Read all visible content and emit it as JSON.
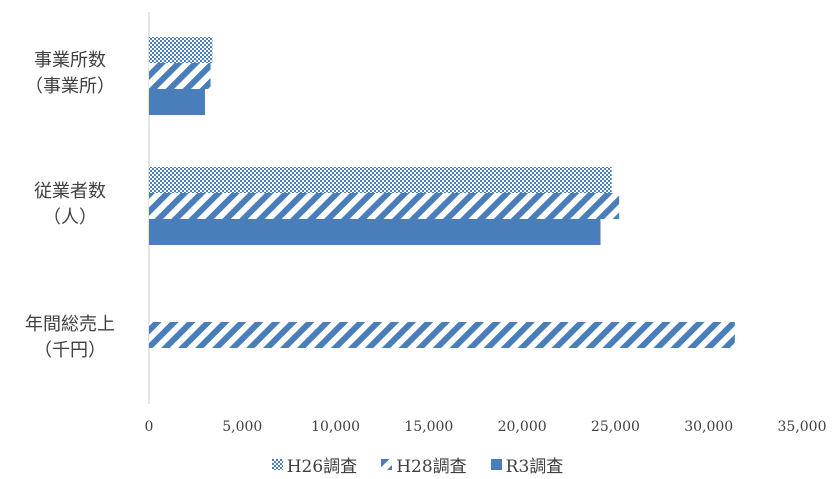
{
  "chart_data": {
    "type": "bar",
    "orientation": "horizontal",
    "categories": [
      {
        "line1": "事業所数",
        "line2": "（事業所）"
      },
      {
        "line1": "従業者数",
        "line2": "（人）"
      },
      {
        "line1": "年間総売上",
        "line2": "（千円）"
      }
    ],
    "series": [
      {
        "name": "H26調査",
        "pattern": "checker",
        "color": "#4a7ebb",
        "values": [
          3400,
          24800,
          null
        ]
      },
      {
        "name": "H28調査",
        "pattern": "diagonal",
        "color": "#4a7ebb",
        "values": [
          3300,
          25200,
          31400
        ]
      },
      {
        "name": "R3調査",
        "pattern": "solid",
        "color": "#4a7ebb",
        "values": [
          3000,
          24200,
          null
        ]
      }
    ],
    "xlim": [
      0,
      35000
    ],
    "xticks": [
      "0",
      "5,000",
      "10,000",
      "15,000",
      "20,000",
      "25,000",
      "30,000",
      "35,000"
    ],
    "grid": false,
    "legend_position": "bottom"
  }
}
